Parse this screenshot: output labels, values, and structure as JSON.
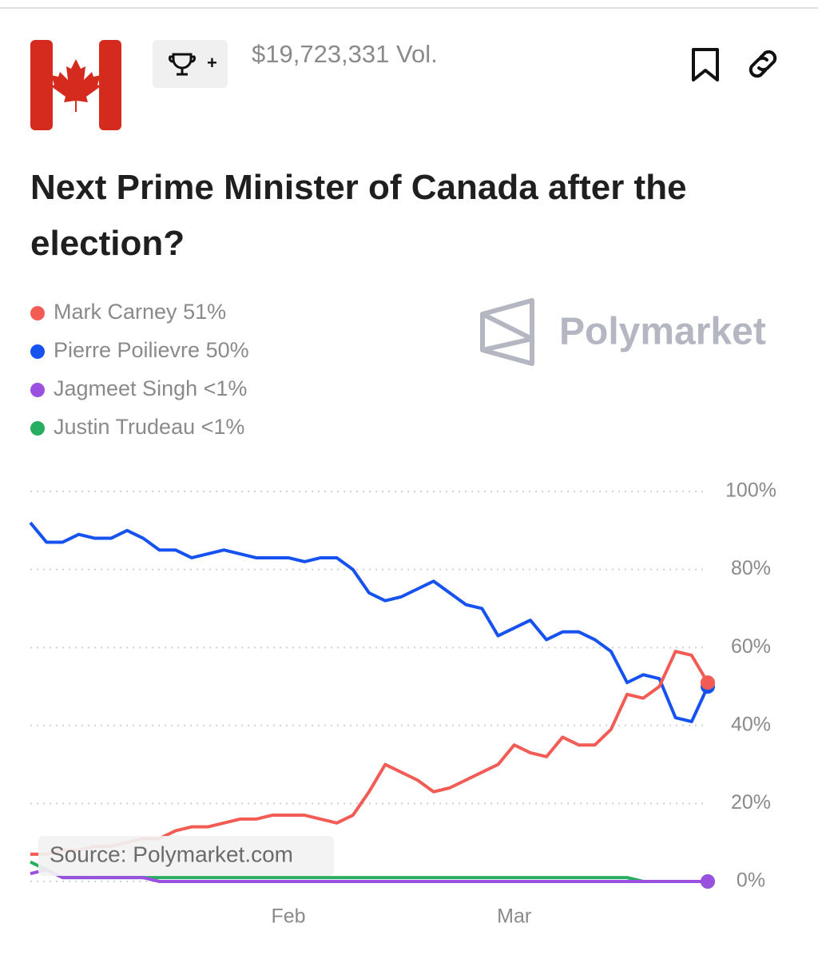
{
  "header": {
    "volume": "$19,723,331 Vol.",
    "badge": "+"
  },
  "chart_data": {
    "type": "line",
    "title": "Next Prime Minister of Canada after the election?",
    "brand": "Polymarket",
    "source": "Source: Polymarket.com",
    "categories": [
      null,
      null,
      null,
      null,
      null,
      null,
      null,
      null,
      null,
      null,
      null,
      null,
      null,
      null,
      null,
      null,
      "Feb",
      null,
      null,
      null,
      null,
      null,
      null,
      null,
      null,
      null,
      null,
      null,
      null,
      null,
      "Mar",
      null,
      null,
      null,
      null,
      null,
      null,
      null,
      null,
      null,
      null,
      null,
      null
    ],
    "series": [
      {
        "name": "Mark Carney",
        "current": "51%",
        "color": "#f25c54",
        "values": [
          7,
          7,
          8,
          8,
          9,
          9,
          10,
          11,
          11,
          13,
          14,
          14,
          15,
          16,
          16,
          17,
          17,
          17,
          16,
          15,
          17,
          23,
          30,
          28,
          26,
          23,
          24,
          26,
          28,
          30,
          35,
          33,
          32,
          37,
          35,
          35,
          39,
          48,
          47,
          50,
          59,
          58,
          51
        ]
      },
      {
        "name": "Pierre Poilievre",
        "current": "50%",
        "color": "#1652f0",
        "values": [
          92,
          87,
          87,
          89,
          88,
          88,
          90,
          88,
          85,
          85,
          83,
          84,
          85,
          84,
          83,
          83,
          83,
          82,
          83,
          83,
          80,
          74,
          72,
          73,
          75,
          77,
          74,
          71,
          70,
          63,
          65,
          67,
          62,
          64,
          64,
          62,
          59,
          51,
          53,
          52,
          42,
          41,
          50
        ]
      },
      {
        "name": "Jagmeet Singh",
        "current": "<1%",
        "color": "#9b51e0",
        "values": [
          2,
          3,
          1,
          1,
          1,
          1,
          1,
          1,
          0,
          0,
          0,
          0,
          0,
          0,
          0,
          0,
          0,
          0,
          0,
          0,
          0,
          0,
          0,
          0,
          0,
          0,
          0,
          0,
          0,
          0,
          0,
          0,
          0,
          0,
          0,
          0,
          0,
          0,
          0,
          0,
          0,
          0,
          0
        ]
      },
      {
        "name": "Justin Trudeau",
        "current": "<1%",
        "color": "#27ae60",
        "values": [
          5,
          3,
          1,
          1,
          1,
          1,
          1,
          1,
          1,
          1,
          1,
          1,
          1,
          1,
          1,
          1,
          1,
          1,
          1,
          1,
          1,
          1,
          1,
          1,
          1,
          1,
          1,
          1,
          1,
          1,
          1,
          1,
          1,
          1,
          1,
          1,
          1,
          1,
          0,
          0,
          0,
          0,
          0
        ]
      }
    ],
    "ylim": [
      0,
      100
    ],
    "yticks": [
      {
        "value": 0,
        "label": "0%"
      },
      {
        "value": 20,
        "label": "20%"
      },
      {
        "value": 40,
        "label": "40%"
      },
      {
        "value": 60,
        "label": "60%"
      },
      {
        "value": 80,
        "label": "80%"
      },
      {
        "value": 100,
        "label": "100%"
      }
    ],
    "grid": true
  }
}
